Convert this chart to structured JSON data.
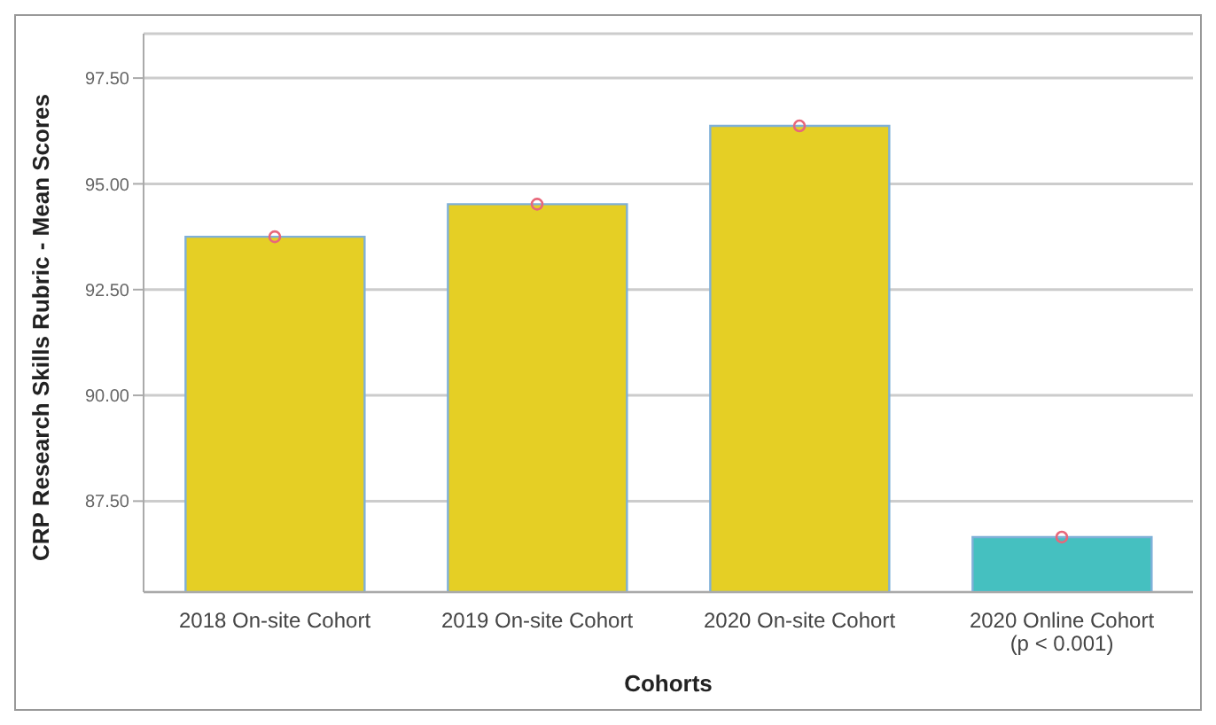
{
  "chart_data": {
    "type": "bar",
    "xlabel": "Cohorts",
    "ylabel": "CRP Research Skills Rubric - Mean Scores",
    "categories": [
      "2018 On-site Cohort",
      "2019 On-site Cohort",
      "2020 On-site Cohort",
      "2020 Online Cohort\n(p < 0.001)"
    ],
    "series": [
      {
        "colors": [
          "#e5cf25",
          "#e5cf25",
          "#e5cf25",
          "#45c0c0"
        ],
        "values": [
          93.75,
          94.52,
          96.37,
          86.65
        ]
      },
      {
        "type": "scatter",
        "color": "#e8677a",
        "x": [
          "2018 On-site Cohort",
          "2019 On-site Cohort",
          "2020 On-site Cohort",
          "2020 Online Cohort\n(p < 0.001)"
        ],
        "values": [
          93.75,
          94.52,
          96.37,
          86.65
        ]
      }
    ],
    "ylim": [
      85.35,
      98.55
    ],
    "yticks": [
      {
        "value": 87.5,
        "label": "87.50"
      },
      {
        "value": 90,
        "label": "90.00"
      },
      {
        "value": 92.5,
        "label": "92.50"
      },
      {
        "value": 95,
        "label": "95.00"
      },
      {
        "value": 97.5,
        "label": "97.50"
      }
    ],
    "grid": "y",
    "marker": "circle",
    "legend": false
  }
}
